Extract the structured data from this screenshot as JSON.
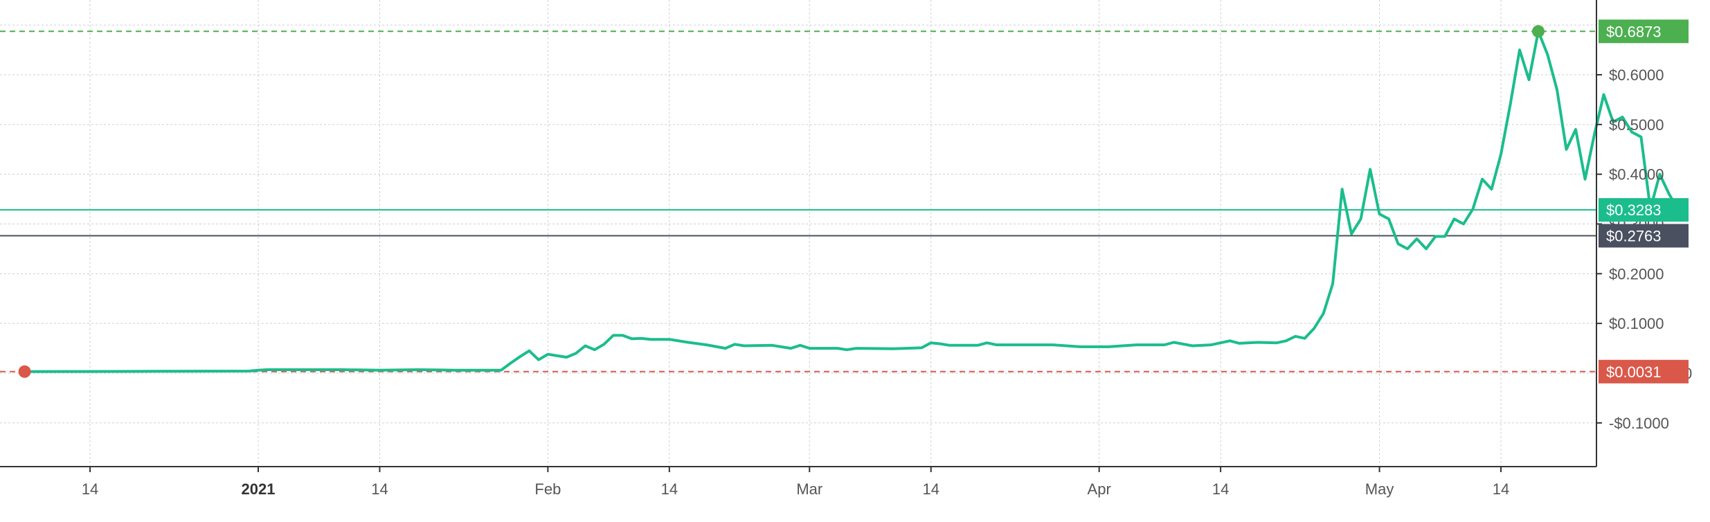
{
  "chart_data": {
    "type": "line",
    "x_tick_labels": [
      "14",
      "2021",
      "14",
      "Feb",
      "14",
      "Mar",
      "14",
      "Apr",
      "14",
      "May",
      "14"
    ],
    "y_tick_labels": [
      "$0.6000",
      "$0.5000",
      "$0.4000",
      "$0.3000",
      "$0.2000",
      "$0.1000",
      "-$0.1000"
    ],
    "ylim": [
      -0.185,
      0.745
    ],
    "grid": true,
    "series": [
      {
        "color": "#1bbd8c",
        "points": [
          [
            "2020-12-07",
            0.0031
          ],
          [
            "2020-12-12",
            0.0033
          ],
          [
            "2020-12-17",
            0.0035
          ],
          [
            "2020-12-22",
            0.0038
          ],
          [
            "2020-12-27",
            0.004
          ],
          [
            "2020-12-31",
            0.0042
          ],
          [
            "2021-01-01",
            0.006
          ],
          [
            "2021-01-02",
            0.007
          ],
          [
            "2021-01-06",
            0.007
          ],
          [
            "2021-01-10",
            0.007
          ],
          [
            "2021-01-14",
            0.006
          ],
          [
            "2021-01-18",
            0.007
          ],
          [
            "2021-01-22",
            0.006
          ],
          [
            "2021-01-26",
            0.006
          ],
          [
            "2021-01-27",
            0.006
          ],
          [
            "2021-01-28",
            0.02
          ],
          [
            "2021-01-29",
            0.033
          ],
          [
            "2021-01-30",
            0.045
          ],
          [
            "2021-01-31",
            0.027
          ],
          [
            "2021-02-01",
            0.038
          ],
          [
            "2021-02-02",
            0.035
          ],
          [
            "2021-02-03",
            0.032
          ],
          [
            "2021-02-04",
            0.04
          ],
          [
            "2021-02-05",
            0.055
          ],
          [
            "2021-02-06",
            0.047
          ],
          [
            "2021-02-07",
            0.058
          ],
          [
            "2021-02-08",
            0.076
          ],
          [
            "2021-02-09",
            0.076
          ],
          [
            "2021-02-10",
            0.069
          ],
          [
            "2021-02-11",
            0.07
          ],
          [
            "2021-02-12",
            0.068
          ],
          [
            "2021-02-14",
            0.068
          ],
          [
            "2021-02-16",
            0.062
          ],
          [
            "2021-02-18",
            0.057
          ],
          [
            "2021-02-20",
            0.05
          ],
          [
            "2021-02-21",
            0.058
          ],
          [
            "2021-02-22",
            0.055
          ],
          [
            "2021-02-25",
            0.056
          ],
          [
            "2021-02-27",
            0.05
          ],
          [
            "2021-02-28",
            0.056
          ],
          [
            "2021-03-01",
            0.05
          ],
          [
            "2021-03-04",
            0.05
          ],
          [
            "2021-03-05",
            0.047
          ],
          [
            "2021-03-06",
            0.05
          ],
          [
            "2021-03-10",
            0.049
          ],
          [
            "2021-03-13",
            0.051
          ],
          [
            "2021-03-14",
            0.061
          ],
          [
            "2021-03-15",
            0.059
          ],
          [
            "2021-03-16",
            0.056
          ],
          [
            "2021-03-19",
            0.056
          ],
          [
            "2021-03-20",
            0.061
          ],
          [
            "2021-03-21",
            0.057
          ],
          [
            "2021-03-24",
            0.057
          ],
          [
            "2021-03-27",
            0.057
          ],
          [
            "2021-03-30",
            0.053
          ],
          [
            "2021-04-02",
            0.053
          ],
          [
            "2021-04-05",
            0.057
          ],
          [
            "2021-04-08",
            0.057
          ],
          [
            "2021-04-09",
            0.062
          ],
          [
            "2021-04-11",
            0.055
          ],
          [
            "2021-04-13",
            0.057
          ],
          [
            "2021-04-15",
            0.065
          ],
          [
            "2021-04-16",
            0.06
          ],
          [
            "2021-04-18",
            0.062
          ],
          [
            "2021-04-20",
            0.061
          ],
          [
            "2021-04-21",
            0.065
          ],
          [
            "2021-04-22",
            0.074
          ],
          [
            "2021-04-23",
            0.07
          ],
          [
            "2021-04-24",
            0.09
          ],
          [
            "2021-04-25",
            0.12
          ],
          [
            "2021-04-26",
            0.18
          ],
          [
            "2021-04-27",
            0.37
          ],
          [
            "2021-04-28",
            0.28
          ],
          [
            "2021-04-29",
            0.31
          ],
          [
            "2021-04-30",
            0.41
          ],
          [
            "2021-05-01",
            0.32
          ],
          [
            "2021-05-02",
            0.31
          ],
          [
            "2021-05-03",
            0.26
          ],
          [
            "2021-05-04",
            0.25
          ],
          [
            "2021-05-05",
            0.27
          ],
          [
            "2021-05-06",
            0.25
          ],
          [
            "2021-05-07",
            0.275
          ],
          [
            "2021-05-08",
            0.275
          ],
          [
            "2021-05-09",
            0.31
          ],
          [
            "2021-05-10",
            0.3
          ],
          [
            "2021-05-11",
            0.33
          ],
          [
            "2021-05-12",
            0.39
          ],
          [
            "2021-05-13",
            0.37
          ],
          [
            "2021-05-14",
            0.44
          ],
          [
            "2021-05-15",
            0.54
          ],
          [
            "2021-05-16",
            0.65
          ],
          [
            "2021-05-17",
            0.59
          ],
          [
            "2021-05-18",
            0.6873
          ],
          [
            "2021-05-19",
            0.64
          ],
          [
            "2021-05-20",
            0.57
          ],
          [
            "2021-05-21",
            0.45
          ],
          [
            "2021-05-22",
            0.49
          ],
          [
            "2021-05-23",
            0.39
          ],
          [
            "2021-05-24",
            0.48
          ],
          [
            "2021-05-25",
            0.56
          ],
          [
            "2021-05-26",
            0.505
          ],
          [
            "2021-05-27",
            0.515
          ],
          [
            "2021-05-28",
            0.485
          ],
          [
            "2021-05-29",
            0.475
          ],
          [
            "2021-05-30",
            0.33
          ],
          [
            "2021-05-31",
            0.4
          ],
          [
            "2021-06-01",
            0.36
          ],
          [
            "2021-06-02",
            0.3283
          ]
        ]
      }
    ],
    "x_ticks": [
      "2020-12-14",
      "2021-01-01",
      "2021-01-14",
      "2021-02-01",
      "2021-02-14",
      "2021-03-01",
      "2021-03-14",
      "2021-04-01",
      "2021-04-14",
      "2021-05-01",
      "2021-05-14"
    ],
    "y_ticks": [
      0.6,
      0.5,
      0.4,
      0.3,
      0.2,
      0.1,
      -0.1
    ],
    "y_tick_zero_partial": "0",
    "reference_lines": [
      {
        "value": 0.6873,
        "label": "$0.6873",
        "style": "dashed",
        "color": "#4caf50"
      },
      {
        "value": 0.3283,
        "label": "$0.3283",
        "style": "solid",
        "color": "#1bbd8c"
      },
      {
        "value": 0.2763,
        "label": "$0.2763",
        "style": "solid",
        "color": "#4a5060"
      },
      {
        "value": 0.0031,
        "label": "$0.0031",
        "style": "dashed",
        "color": "#d9584a"
      }
    ],
    "markers": [
      {
        "date": "2020-12-07",
        "value": 0.0031,
        "color": "#d9584a"
      },
      {
        "date": "2021-05-18",
        "value": 0.6873,
        "color": "#4caf50"
      }
    ]
  }
}
